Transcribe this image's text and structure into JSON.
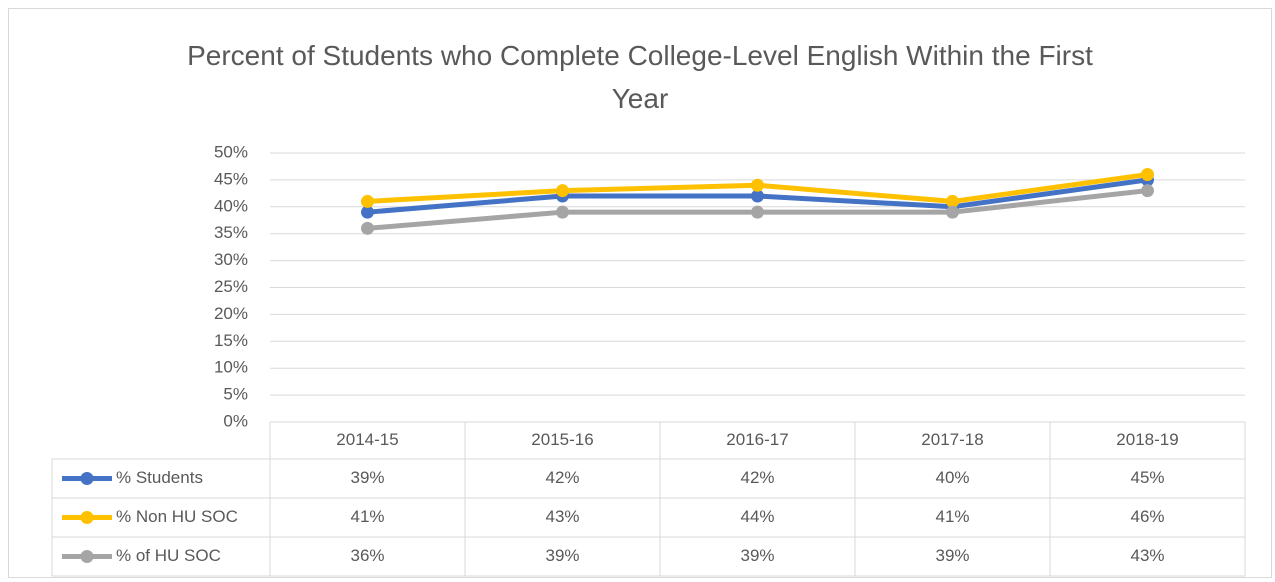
{
  "chart_data": {
    "type": "line",
    "title": "Percent of Students who Complete College-Level English Within the First Year",
    "categories": [
      "2014-15",
      "2015-16",
      "2016-17",
      "2017-18",
      "2018-19"
    ],
    "series": [
      {
        "name": "% Students",
        "color": "#4472c4",
        "values": [
          39,
          42,
          42,
          40,
          45
        ],
        "value_labels": [
          "39%",
          "42%",
          "42%",
          "40%",
          "45%"
        ]
      },
      {
        "name": "% Non HU SOC",
        "color": "#ffc000",
        "values": [
          41,
          43,
          44,
          41,
          46
        ],
        "value_labels": [
          "41%",
          "43%",
          "44%",
          "41%",
          "46%"
        ]
      },
      {
        "name": "% of HU SOC",
        "color": "#a5a5a5",
        "values": [
          36,
          39,
          39,
          39,
          43
        ],
        "value_labels": [
          "36%",
          "39%",
          "39%",
          "39%",
          "43%"
        ]
      }
    ],
    "ylim": [
      0,
      50
    ],
    "yticks": [
      {
        "value": 0,
        "label": "0%"
      },
      {
        "value": 5,
        "label": "5%"
      },
      {
        "value": 10,
        "label": "10%"
      },
      {
        "value": 15,
        "label": "15%"
      },
      {
        "value": 20,
        "label": "20%"
      },
      {
        "value": 25,
        "label": "25%"
      },
      {
        "value": 30,
        "label": "30%"
      },
      {
        "value": 35,
        "label": "35%"
      },
      {
        "value": 40,
        "label": "40%"
      },
      {
        "value": 45,
        "label": "45%"
      },
      {
        "value": 50,
        "label": "50%"
      }
    ],
    "grid": true,
    "data_table": true
  }
}
